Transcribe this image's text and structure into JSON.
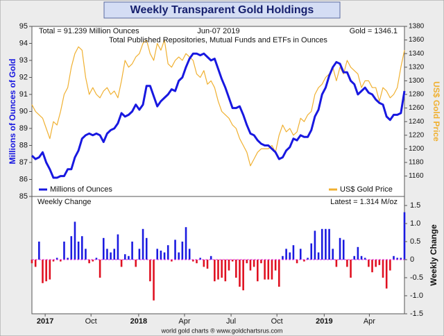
{
  "title": "Weekly Transparent Gold Holdings",
  "footer": "world gold charts ® www.goldchartsrus.com",
  "chart_data": [
    {
      "type": "line",
      "subtitle": "Total Published Repositories, Mutual Funds and ETFs in Ounces",
      "annotations": [
        "Total = 91.239 Million Ounces",
        "Jun-07  2019",
        "Gold = 1346.1"
      ],
      "ylabel": "Millions of Ounces of Gold",
      "y2label": "US$ Gold Price",
      "legend": "bottom",
      "xlim": [
        0,
        104
      ],
      "ylim": [
        85,
        95
      ],
      "yticks": [
        85,
        86,
        87,
        88,
        89,
        90,
        91,
        92,
        93,
        94,
        95
      ],
      "y2lim": [
        1130,
        1380
      ],
      "y2ticks": [
        1160,
        1180,
        1200,
        1220,
        1240,
        1260,
        1280,
        1300,
        1320,
        1340,
        1360,
        1380
      ],
      "series": [
        {
          "name": "Millions of Ounces",
          "color": "#1818e0",
          "axis": "y",
          "values": [
            87.4,
            87.2,
            87.3,
            87.6,
            87.0,
            86.6,
            86.1,
            86.1,
            86.2,
            86.2,
            86.6,
            86.6,
            87.3,
            87.7,
            88.4,
            88.6,
            88.7,
            88.6,
            88.7,
            88.6,
            88.2,
            88.7,
            88.9,
            89.0,
            89.3,
            89.9,
            89.7,
            89.8,
            90.0,
            90.4,
            90.1,
            90.4,
            91.5,
            91.5,
            90.9,
            90.3,
            90.6,
            90.8,
            91.0,
            91.3,
            91.2,
            91.8,
            92.0,
            92.6,
            93.1,
            93.4,
            93.4,
            93.3,
            93.4,
            93.2,
            93.0,
            93.1,
            92.5,
            91.9,
            91.4,
            90.8,
            90.2,
            90.2,
            90.3,
            89.8,
            89.2,
            88.7,
            88.6,
            88.3,
            88.1,
            88.0,
            88.0,
            87.8,
            87.6,
            87.2,
            87.3,
            87.7,
            87.9,
            88.4,
            88.3,
            88.6,
            88.5,
            88.5,
            88.9,
            89.7,
            90.1,
            91.0,
            91.4,
            92.1,
            92.6,
            92.9,
            92.8,
            92.3,
            92.3,
            91.8,
            91.6,
            91.0,
            91.2,
            91.4,
            91.1,
            91.0,
            90.7,
            90.5,
            90.4,
            89.7,
            89.5,
            89.8,
            89.8,
            89.9,
            91.2
          ]
        },
        {
          "name": "US$ Gold Price",
          "color": "#f0b030",
          "axis": "y2",
          "values": [
            1265,
            1255,
            1250,
            1245,
            1230,
            1215,
            1240,
            1235,
            1255,
            1280,
            1290,
            1320,
            1340,
            1350,
            1345,
            1305,
            1280,
            1290,
            1280,
            1275,
            1285,
            1290,
            1280,
            1285,
            1275,
            1300,
            1330,
            1320,
            1325,
            1335,
            1340,
            1355,
            1360,
            1340,
            1330,
            1355,
            1345,
            1360,
            1325,
            1320,
            1330,
            1335,
            1330,
            1340,
            1335,
            1330,
            1310,
            1305,
            1315,
            1295,
            1300,
            1290,
            1270,
            1255,
            1250,
            1245,
            1235,
            1230,
            1215,
            1205,
            1195,
            1175,
            1185,
            1195,
            1200,
            1200,
            1200,
            1205,
            1195,
            1220,
            1235,
            1225,
            1230,
            1220,
            1225,
            1245,
            1240,
            1250,
            1255,
            1280,
            1290,
            1295,
            1305,
            1310,
            1320,
            1300,
            1320,
            1310,
            1330,
            1320,
            1315,
            1310,
            1290,
            1300,
            1300,
            1290,
            1290,
            1270,
            1290,
            1285,
            1275,
            1280,
            1290,
            1320,
            1345
          ]
        }
      ]
    },
    {
      "type": "bar",
      "title": "Weekly Change",
      "annotation": "Latest = 1.314 M/oz",
      "y2label": "Weekly Change",
      "pos_color": "#1a1ae0",
      "neg_color": "#e01020",
      "zero_color": "#e020e0",
      "xlim": [
        0,
        104
      ],
      "xticks": [
        {
          "value": 3.7,
          "label": "2017"
        },
        {
          "value": 16.5,
          "label": "Oct"
        },
        {
          "value": 29.8,
          "label": "2018"
        },
        {
          "value": 42.6,
          "label": "Apr"
        },
        {
          "value": 55.6,
          "label": "Jul"
        },
        {
          "value": 68.4,
          "label": "Oct"
        },
        {
          "value": 81.6,
          "label": "2019"
        },
        {
          "value": 94.2,
          "label": "Apr"
        }
      ],
      "ylim": [
        -1.5,
        1.75
      ],
      "yticks": [
        -1.5,
        {
          "value": -1,
          "label": "-1.0"
        },
        -0.5,
        0,
        0.5,
        {
          "value": 1,
          "label": "1.0"
        },
        1.5
      ],
      "values": [
        -0.1,
        -0.2,
        0.5,
        -0.65,
        -0.6,
        -0.55,
        -0.05,
        0.05,
        -0.05,
        0.5,
        0.05,
        0.65,
        1.05,
        0.5,
        0.65,
        0.3,
        -0.1,
        -0.05,
        0.05,
        -0.5,
        0.6,
        0.3,
        0.2,
        0.3,
        0.7,
        -0.2,
        0.15,
        0.1,
        0.5,
        -0.2,
        0.3,
        0.85,
        0.6,
        -0.6,
        -1.13,
        0.3,
        0.25,
        0.2,
        0.4,
        -0.05,
        0.55,
        0.2,
        0.5,
        0.9,
        0.3,
        -0.05,
        -0.1,
        0.05,
        -0.2,
        -0.25,
        0.1,
        -0.6,
        -0.55,
        -0.5,
        -0.6,
        -0.3,
        -0.05,
        -0.5,
        -0.75,
        -0.85,
        -0.1,
        -0.3,
        -0.2,
        -0.6,
        -0.1,
        -0.55,
        -0.55,
        -0.55,
        -0.3,
        -0.75,
        0.1,
        0.3,
        0.2,
        0.4,
        -0.1,
        0.3,
        -0.05,
        0.05,
        0.45,
        0.8,
        0.2,
        0.85,
        0.85,
        0.85,
        0.3,
        -0.2,
        0.6,
        0.55,
        -0.2,
        -0.5,
        0.1,
        0.35,
        0.1,
        0.05,
        -0.2,
        -0.35,
        -0.2,
        -0.15,
        -0.5,
        -0.8,
        -0.3,
        0.1,
        0.05,
        0.05,
        1.314
      ]
    }
  ]
}
